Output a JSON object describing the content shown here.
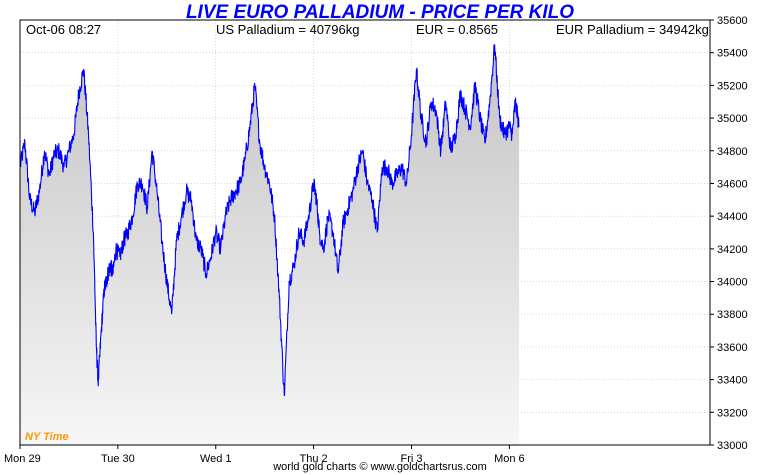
{
  "chart_data": {
    "type": "area",
    "title": "LIVE EURO PALLADIUM - PRICE PER KILO",
    "info": {
      "timestamp": "Oct-06  08:27",
      "us_price": "US Palladium = 40796kg",
      "fx_rate": "EUR = 0.8565",
      "eur_price": "EUR Palladium = 34942kg"
    },
    "timezone_label": "NY Time",
    "credit": "world gold charts © www.goldchartsrus.com",
    "ylim": [
      33000,
      35600
    ],
    "yticks": [
      33000,
      33200,
      33400,
      33600,
      33800,
      34000,
      34200,
      34400,
      34600,
      34800,
      35000,
      35200,
      35400,
      35600
    ],
    "xlim": [
      0,
      7.05
    ],
    "xticks": [
      {
        "label": "Mon 29",
        "x": 0
      },
      {
        "label": "Tue 30",
        "x": 1
      },
      {
        "label": "Wed 1",
        "x": 2
      },
      {
        "label": "Thu 2",
        "x": 3
      },
      {
        "label": "Fri 3",
        "x": 4
      },
      {
        "label": "Mon 6",
        "x": 5
      }
    ],
    "grid": true,
    "colors": {
      "line": "#0000ff",
      "fill_top": "#c4c4c4",
      "fill_bottom": "#f6f6f6",
      "grid": "#bbbbbb"
    },
    "series": [
      {
        "x": [
          0.0,
          0.05,
          0.1,
          0.15,
          0.2,
          0.25,
          0.3,
          0.35,
          0.4,
          0.45,
          0.5,
          0.55,
          0.6,
          0.65,
          0.7,
          0.75,
          0.78,
          0.8,
          0.83,
          0.86,
          0.88,
          0.9,
          0.92,
          0.95,
          0.98,
          1.02,
          1.06,
          1.1,
          1.15,
          1.2,
          1.25,
          1.3,
          1.35,
          1.4,
          1.45,
          1.5,
          1.55,
          1.6,
          1.65,
          1.7,
          1.75,
          1.8,
          1.85,
          1.9,
          1.95,
          2.0,
          2.05,
          2.1,
          2.15,
          2.2,
          2.25,
          2.3,
          2.35,
          2.4,
          2.45,
          2.5,
          2.55,
          2.6,
          2.65,
          2.7,
          2.75,
          2.8,
          2.85,
          2.9,
          2.95,
          3.0,
          3.03,
          3.06,
          3.1,
          3.15,
          3.2,
          3.25,
          3.3,
          3.35,
          3.4,
          3.45,
          3.5,
          3.55,
          3.6,
          3.65,
          3.7,
          3.75,
          3.8,
          3.85,
          3.9,
          3.95,
          4.0,
          4.05,
          4.1,
          4.15,
          4.2,
          4.25,
          4.3,
          4.35,
          4.4,
          4.45,
          4.5,
          4.55,
          4.6,
          4.65,
          4.7,
          4.75,
          4.8,
          4.85,
          4.9,
          4.95,
          5.0,
          5.03,
          5.06,
          5.1
        ],
        "values": [
          34700,
          34850,
          34500,
          34420,
          34560,
          34800,
          34650,
          34780,
          34800,
          34700,
          34800,
          34900,
          35150,
          35300,
          34900,
          34300,
          33600,
          33380,
          33700,
          33950,
          34000,
          34050,
          34100,
          34050,
          34200,
          34150,
          34250,
          34300,
          34400,
          34600,
          34600,
          34450,
          34800,
          34550,
          34250,
          34000,
          33800,
          34250,
          34400,
          34550,
          34500,
          34250,
          34200,
          34050,
          34150,
          34300,
          34200,
          34400,
          34500,
          34550,
          34600,
          34750,
          34950,
          35200,
          34850,
          34700,
          34600,
          34400,
          33900,
          33300,
          34000,
          34100,
          34300,
          34250,
          34400,
          34600,
          34500,
          34300,
          34200,
          34400,
          34300,
          34050,
          34350,
          34450,
          34550,
          34700,
          34800,
          34600,
          34500,
          34300,
          34700,
          34700,
          34600,
          34650,
          34700,
          34600,
          34900,
          35300,
          35000,
          34850,
          35100,
          35050,
          34800,
          35100,
          34800,
          34900,
          35150,
          35050,
          34950,
          35200,
          35000,
          34850,
          35100,
          35450,
          35000,
          34900,
          34950,
          34900,
          35100,
          34950
        ]
      }
    ]
  }
}
